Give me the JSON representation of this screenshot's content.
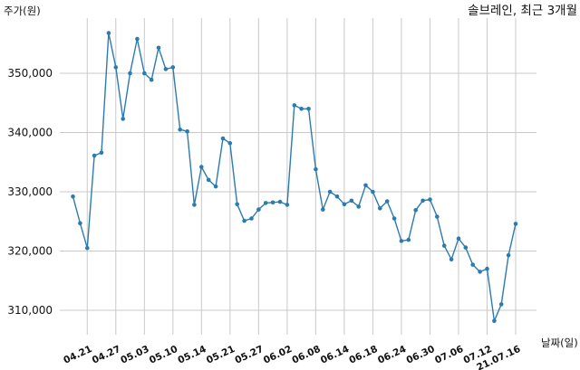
{
  "chart_data": {
    "type": "line",
    "title": "솔브레인, 최근 3개월",
    "ylabel": "주가(원)",
    "xlabel": "날짜(일)",
    "ylim": [
      305000,
      360000
    ],
    "yticks": [
      310000,
      320000,
      330000,
      340000,
      350000
    ],
    "ytick_labels": [
      "310,000",
      "320,000",
      "330,000",
      "340,000",
      "350,000"
    ],
    "grid": true,
    "line_color": "#2b7bb0",
    "xtick_labels": [
      "04.21",
      "04.27",
      "05.03",
      "05.10",
      "05.14",
      "05.21",
      "05.27",
      "06.02",
      "06.08",
      "06.14",
      "06.18",
      "06.24",
      "06.30",
      "07.06",
      "07.12",
      "21.07.16"
    ],
    "xtick_index": [
      2,
      6,
      10,
      14,
      18,
      22,
      26,
      30,
      34,
      38,
      42,
      46,
      50,
      54,
      58,
      62
    ],
    "series": [
      {
        "values": [
          329200,
          324700,
          320500,
          336100,
          336600,
          356800,
          351000,
          342300,
          350000,
          355800,
          350000,
          348900,
          354300,
          350700,
          351000,
          340500,
          340200,
          327800,
          334200,
          332000,
          330900,
          339000,
          338200,
          327900,
          325100,
          325500,
          327000,
          328100,
          328200,
          328300,
          327800,
          344600,
          344000,
          344000,
          333800,
          327000,
          330000,
          329200,
          327900,
          328500,
          327500,
          331100,
          330000,
          327200,
          328400,
          325500,
          321700,
          321900,
          326900,
          328500,
          328700,
          325800,
          320900,
          318600,
          322100,
          320600,
          317700,
          316500,
          317000,
          308200,
          311000,
          319300,
          324600
        ]
      }
    ]
  }
}
